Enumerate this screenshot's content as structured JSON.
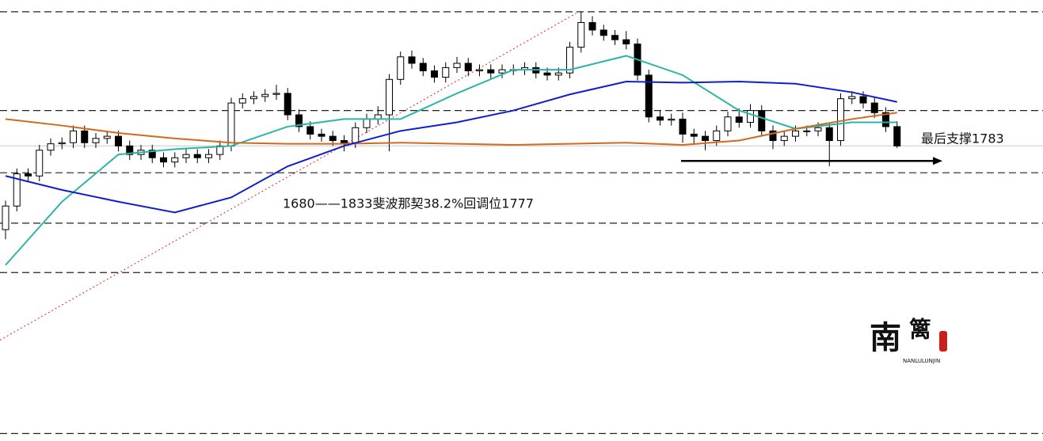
{
  "chart_data": {
    "type": "candlestick",
    "ylim": [
      1633,
      1838.5
    ],
    "candles": {
      "open": [
        1731.5,
        1742.5,
        1757.5,
        1756.5,
        1768.5,
        1771.5,
        1772,
        1777.5,
        1772,
        1774,
        1775,
        1770.5,
        1766.5,
        1768.5,
        1765,
        1763,
        1765,
        1766.5,
        1765,
        1766.5,
        1770.5,
        1790.5,
        1792.5,
        1793.5,
        1794.5,
        1795,
        1785,
        1779.5,
        1776,
        1775,
        1773,
        1772,
        1779,
        1783,
        1785,
        1801.5,
        1812,
        1809,
        1805.5,
        1802.5,
        1807,
        1809,
        1805.5,
        1806,
        1804.5,
        1806,
        1806,
        1807,
        1804.5,
        1803.5,
        1804.5,
        1816.5,
        1828,
        1824.5,
        1822,
        1820,
        1818,
        1803.5,
        1784,
        1782.5,
        1783,
        1776,
        1775,
        1773,
        1777.5,
        1784,
        1781.5,
        1787,
        1777.5,
        1773,
        1775,
        1777.5,
        1777.5,
        1779,
        1773,
        1792.5,
        1793.5,
        1790.5,
        1786,
        1779.5
      ],
      "high": [
        1745,
        1760,
        1760,
        1771,
        1774,
        1774.5,
        1780,
        1780,
        1776.5,
        1777.5,
        1777.5,
        1773,
        1771,
        1771,
        1767.5,
        1767.5,
        1769,
        1769,
        1769,
        1773,
        1793,
        1795,
        1796,
        1797,
        1799,
        1797.5,
        1787.5,
        1782,
        1778.5,
        1777.5,
        1775.5,
        1781.5,
        1785.5,
        1789,
        1804,
        1814.5,
        1815,
        1811.5,
        1808,
        1809.5,
        1812,
        1811.5,
        1808.5,
        1808.5,
        1808.5,
        1808.5,
        1809.5,
        1809.5,
        1807,
        1807,
        1819,
        1833,
        1831,
        1827,
        1824.5,
        1824,
        1820.5,
        1806,
        1787,
        1785.5,
        1786,
        1778.5,
        1777.5,
        1780,
        1786.5,
        1788,
        1790,
        1789.5,
        1780,
        1777.5,
        1780,
        1780,
        1781.5,
        1781.5,
        1795,
        1796,
        1796,
        1793,
        1788.5,
        1782
      ],
      "low": [
        1727,
        1740,
        1754,
        1754,
        1766,
        1769,
        1769.5,
        1769.5,
        1769.5,
        1771.5,
        1768,
        1764,
        1764,
        1762.5,
        1760.5,
        1760.5,
        1762.5,
        1762.5,
        1762.5,
        1764,
        1768,
        1788,
        1790,
        1791,
        1792,
        1782.5,
        1777,
        1773.5,
        1772.5,
        1770.5,
        1768,
        1769.5,
        1776.5,
        1780.5,
        1768,
        1799,
        1806.5,
        1803,
        1800,
        1800,
        1804.5,
        1803,
        1803,
        1802,
        1802,
        1803.5,
        1803.5,
        1802,
        1801,
        1801,
        1802,
        1814,
        1822,
        1819.5,
        1817.5,
        1815.5,
        1801,
        1781.5,
        1780,
        1780,
        1772,
        1771,
        1768.5,
        1770.5,
        1775,
        1779,
        1779,
        1775,
        1769,
        1770.5,
        1772.5,
        1775,
        1775,
        1761,
        1770.5,
        1790,
        1788,
        1783.5,
        1777,
        1769.5
      ],
      "close": [
        1742.5,
        1757.5,
        1756.5,
        1768.5,
        1771.5,
        1772,
        1777.5,
        1772,
        1774,
        1775,
        1770.5,
        1766.5,
        1768.5,
        1765,
        1763,
        1765,
        1766.5,
        1765,
        1766.5,
        1770.5,
        1790.5,
        1792.5,
        1793.5,
        1794.5,
        1795,
        1785,
        1779.5,
        1776,
        1775,
        1773,
        1772,
        1779,
        1783,
        1785,
        1801.5,
        1812,
        1809,
        1805.5,
        1802.5,
        1807,
        1809,
        1805.5,
        1806,
        1804.5,
        1806,
        1806,
        1807,
        1804.5,
        1803.5,
        1804.5,
        1816.5,
        1828,
        1824.5,
        1822,
        1820,
        1818,
        1803.5,
        1784,
        1782.5,
        1783,
        1776,
        1775,
        1773,
        1777.5,
        1784,
        1781.5,
        1787,
        1777.5,
        1773,
        1775,
        1777.5,
        1777.5,
        1779,
        1773,
        1792.5,
        1793.5,
        1790.5,
        1786,
        1779.5,
        1770.5
      ]
    },
    "series": [
      {
        "color": "#2bb5a8",
        "x": [
          0,
          5,
          10,
          15,
          20,
          25,
          30,
          35,
          40,
          45,
          50,
          55,
          60,
          65,
          70,
          75,
          79
        ],
        "values": [
          1715,
          1744.5,
          1766.5,
          1769,
          1770.5,
          1779.5,
          1783,
          1783,
          1795,
          1806,
          1806,
          1812.5,
          1803.5,
          1787,
          1778.5,
          1781.5,
          1781.5
        ]
      },
      {
        "color": "#d2691e",
        "x": [
          0,
          5,
          10,
          15,
          20,
          25,
          30,
          35,
          40,
          45,
          50,
          55,
          60,
          65,
          70,
          75,
          79
        ],
        "values": [
          1783,
          1780,
          1776.5,
          1774,
          1772,
          1771.5,
          1771.5,
          1772,
          1771.5,
          1771,
          1771.5,
          1772,
          1771,
          1773,
          1778.5,
          1783,
          1786
        ]
      },
      {
        "color": "#1020c8",
        "x": [
          0,
          5,
          10,
          15,
          20,
          25,
          30,
          35,
          40,
          45,
          50,
          55,
          60,
          65,
          70,
          75,
          79
        ],
        "values": [
          1756.5,
          1750,
          1744.5,
          1739.5,
          1746.5,
          1761,
          1770.5,
          1777.5,
          1781.5,
          1787,
          1794.5,
          1800.5,
          1800,
          1800.5,
          1799.5,
          1795.5,
          1791
        ]
      }
    ],
    "levels": [
      1833,
      1787,
      1758,
      1734.5,
      1711.5,
      1636.5
    ],
    "price_line": 1770.5,
    "fib_line": [
      1680,
      1833
    ],
    "support_line": 1763.5,
    "annotations": [
      "1680——1833斐波那契38.2%回调位1777",
      "最后支撑1783"
    ],
    "watermark": {
      "chars": [
        "南",
        "篱"
      ],
      "caption": "NANLULUNJIN"
    }
  }
}
